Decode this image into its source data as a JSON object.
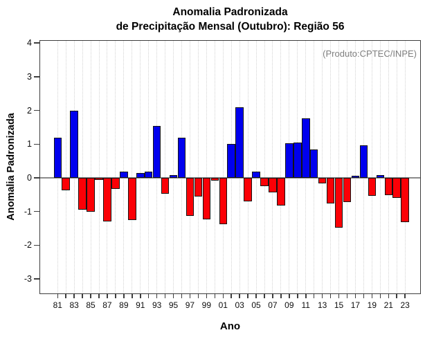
{
  "title": {
    "line1": "Anomalia Padronizada",
    "line2": "de Precipitação Mensal (Outubro): Região 56"
  },
  "annotation": "(Produto:CPTEC/INPE)",
  "axes": {
    "y_label": "Anomalia Padronizada",
    "x_label": "Ano",
    "y_ticks": [
      4,
      3,
      2,
      1,
      0,
      -1,
      -2,
      -3
    ]
  },
  "colors": {
    "positive": "#0000ee",
    "negative": "#fb0006",
    "bar_border": "#141414",
    "grid": "#d2d2d2",
    "zero_line": "#8a8a8a",
    "axis": "#3d3d3d",
    "annotation_text": "#7e7e7e"
  },
  "chart_data": {
    "type": "bar",
    "title": "Anomalia Padronizada de Precipitação Mensal (Outubro): Região 56",
    "xlabel": "Ano",
    "ylabel": "Anomalia Padronizada",
    "ylim": [
      -3.5,
      4.1
    ],
    "grid": "vertical-dotted",
    "legend": "none",
    "annotation": "(Produto:CPTEC/INPE)",
    "color_rule": "blue = positive anomaly, red = negative anomaly",
    "categories": [
      "81",
      "82",
      "83",
      "84",
      "85",
      "86",
      "87",
      "88",
      "89",
      "90",
      "91",
      "92",
      "93",
      "94",
      "95",
      "96",
      "97",
      "98",
      "99",
      "00",
      "01",
      "02",
      "03",
      "04",
      "05",
      "06",
      "07",
      "08",
      "09",
      "10",
      "11",
      "12",
      "13",
      "14",
      "15",
      "16",
      "17",
      "18",
      "19",
      "20",
      "21",
      "22",
      "23"
    ],
    "values": [
      1.2,
      -0.37,
      2.0,
      -0.94,
      -1.01,
      -0.05,
      -1.3,
      -0.32,
      0.19,
      -1.25,
      0.14,
      0.19,
      1.55,
      -0.48,
      0.08,
      1.2,
      -1.13,
      -0.56,
      -1.24,
      -0.08,
      -1.38,
      1.0,
      2.1,
      -0.69,
      0.19,
      -0.25,
      -0.44,
      -0.83,
      1.03,
      1.05,
      1.77,
      0.85,
      -0.17,
      -0.75,
      -1.47,
      -0.72,
      0.02,
      0.97,
      -0.53,
      0.08,
      -0.52,
      -0.59,
      -1.32
    ],
    "x_labeled_ticks": [
      "81",
      "83",
      "85",
      "87",
      "89",
      "91",
      "93",
      "95",
      "97",
      "99",
      "01",
      "03",
      "05",
      "07",
      "09",
      "11",
      "13",
      "15",
      "17",
      "19",
      "21",
      "23"
    ],
    "y_ticks": [
      4,
      3,
      2,
      1,
      0,
      -1,
      -2,
      -3
    ]
  }
}
